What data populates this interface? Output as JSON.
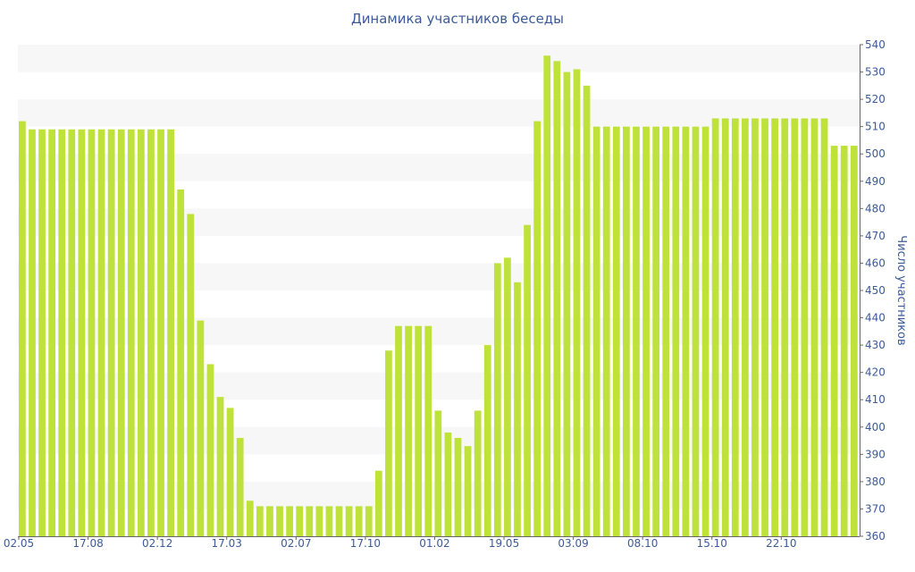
{
  "chart_data": {
    "type": "bar",
    "title": "Динамика участников беседы",
    "xlabel": "",
    "ylabel": "Число участников",
    "ylim": [
      360,
      540
    ],
    "y_ticks": [
      360,
      370,
      380,
      390,
      400,
      410,
      420,
      430,
      440,
      450,
      460,
      470,
      480,
      490,
      500,
      510,
      520,
      530,
      540
    ],
    "x_tick_labels": [
      {
        "index": 0,
        "label": "02.05"
      },
      {
        "index": 7,
        "label": "17.08"
      },
      {
        "index": 14,
        "label": "02.12"
      },
      {
        "index": 21,
        "label": "17.03"
      },
      {
        "index": 28,
        "label": "02.07"
      },
      {
        "index": 35,
        "label": "17.10"
      },
      {
        "index": 42,
        "label": "01.02"
      },
      {
        "index": 49,
        "label": "19.05"
      },
      {
        "index": 56,
        "label": "03.09"
      },
      {
        "index": 63,
        "label": "08.10"
      },
      {
        "index": 70,
        "label": "15.10"
      },
      {
        "index": 77,
        "label": "22.10"
      }
    ],
    "values": [
      512,
      509,
      509,
      509,
      509,
      509,
      509,
      509,
      509,
      509,
      509,
      509,
      509,
      509,
      509,
      509,
      487,
      478,
      439,
      423,
      411,
      407,
      396,
      373,
      371,
      371,
      371,
      371,
      371,
      371,
      371,
      371,
      371,
      371,
      371,
      371,
      384,
      428,
      437,
      437,
      437,
      437,
      406,
      398,
      396,
      393,
      406,
      430,
      460,
      462,
      453,
      474,
      512,
      536,
      534,
      530,
      531,
      525,
      510,
      510,
      510,
      510,
      510,
      510,
      510,
      510,
      510,
      510,
      510,
      510,
      513,
      513,
      513,
      513,
      513,
      513,
      513,
      513,
      513,
      513,
      513,
      513,
      503,
      503,
      503
    ],
    "grid": "horizontal-bands",
    "axis_position": "right",
    "colors": {
      "bar": "#bfe23a",
      "band": "#f7f7f7",
      "text": "#3d5a98",
      "axis": "#666666"
    }
  }
}
